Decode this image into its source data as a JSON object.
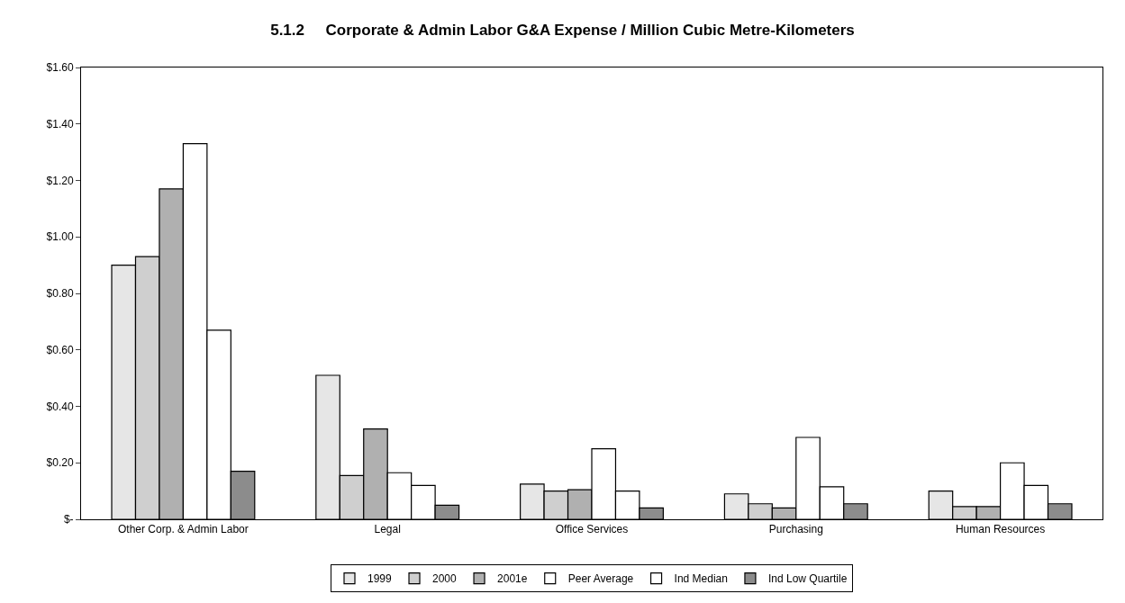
{
  "chart_data": {
    "type": "bar",
    "title": "5.1.2     Corporate & Admin Labor G&A Expense / Million Cubic Metre-Kilometers",
    "categories": [
      "Other Corp. & Admin Labor",
      "Legal",
      "Office Services",
      "Purchasing",
      "Human Resources"
    ],
    "series": [
      {
        "name": "1999",
        "color": "#e6e6e6",
        "values": [
          0.9,
          0.51,
          0.125,
          0.09,
          0.1
        ]
      },
      {
        "name": "2000",
        "color": "#cfcfcf",
        "values": [
          0.93,
          0.155,
          0.1,
          0.055,
          0.045
        ]
      },
      {
        "name": "2001e",
        "color": "#b0b0b0",
        "values": [
          1.17,
          0.32,
          0.105,
          0.04,
          0.045
        ]
      },
      {
        "name": "Peer Average",
        "color": "#ffffff",
        "values": [
          1.33,
          0.165,
          0.25,
          0.29,
          0.2
        ]
      },
      {
        "name": "Ind Median",
        "color": "#ffffff",
        "values": [
          0.67,
          0.12,
          0.1,
          0.115,
          0.12
        ]
      },
      {
        "name": "Ind Low Quartile",
        "color": "#8c8c8c",
        "values": [
          0.17,
          0.05,
          0.04,
          0.055,
          0.055
        ]
      }
    ],
    "ylim": [
      0,
      1.6
    ],
    "yticks": [
      {
        "value": 0,
        "label": "$-"
      },
      {
        "value": 0.2,
        "label": "$0.20"
      },
      {
        "value": 0.4,
        "label": "$0.40"
      },
      {
        "value": 0.6,
        "label": "$0.60"
      },
      {
        "value": 0.8,
        "label": "$0.80"
      },
      {
        "value": 1.0,
        "label": "$1.00"
      },
      {
        "value": 1.2,
        "label": "$1.20"
      },
      {
        "value": 1.4,
        "label": "$1.40"
      },
      {
        "value": 1.6,
        "label": "$1.60"
      }
    ],
    "grid": false,
    "legend": "bottom"
  }
}
